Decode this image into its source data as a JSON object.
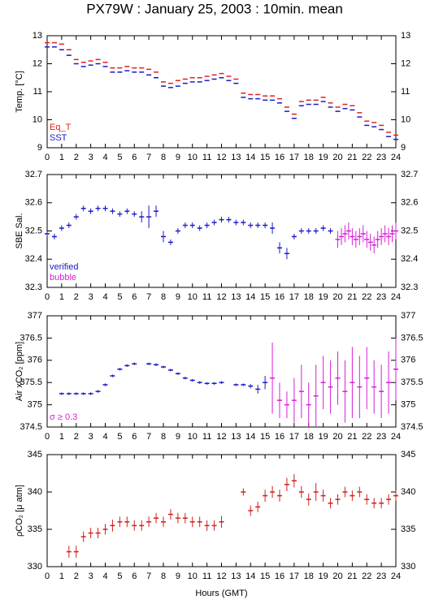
{
  "title": "PX79W : January 25, 2003 : 10min. mean",
  "chart_data": [
    {
      "type": "errorbar",
      "ylabel": "Temp. [°C]",
      "xlim": [
        0,
        24
      ],
      "xticks": [
        0,
        1,
        2,
        3,
        4,
        5,
        6,
        7,
        8,
        9,
        10,
        11,
        12,
        13,
        14,
        15,
        16,
        17,
        18,
        19,
        20,
        21,
        22,
        23,
        24
      ],
      "ylim": [
        9,
        13
      ],
      "yticks": [
        9,
        10,
        11,
        12,
        13
      ],
      "series": [
        {
          "name": "Eq_T",
          "color": "#e0201c",
          "x": [
            0,
            0.5,
            1,
            1.5,
            2,
            2.5,
            3,
            3.5,
            4,
            4.5,
            5,
            5.5,
            6,
            6.5,
            7,
            7.5,
            8,
            8.5,
            9,
            9.5,
            10,
            10.5,
            11,
            11.5,
            12,
            12.5,
            13,
            13.5,
            14,
            14.5,
            15,
            15.5,
            16,
            16.5,
            17,
            17.5,
            18,
            18.5,
            19,
            19.5,
            20,
            20.5,
            21,
            21.5,
            22,
            22.5,
            23,
            23.5,
            24
          ],
          "values": [
            12.75,
            12.75,
            12.7,
            12.5,
            12.15,
            12.05,
            12.1,
            12.15,
            12.05,
            11.85,
            11.85,
            11.9,
            11.85,
            11.85,
            11.8,
            11.7,
            11.35,
            11.3,
            11.4,
            11.45,
            11.5,
            11.5,
            11.55,
            11.6,
            11.65,
            11.55,
            11.45,
            10.95,
            10.9,
            10.9,
            10.85,
            10.85,
            10.75,
            10.45,
            10.2,
            10.65,
            10.7,
            10.7,
            10.8,
            10.6,
            10.45,
            10.55,
            10.5,
            10.25,
            9.95,
            9.9,
            9.8,
            9.55,
            9.45
          ]
        },
        {
          "name": "SST",
          "color": "#1a1ac8",
          "x": [
            0,
            0.5,
            1,
            1.5,
            2,
            2.5,
            3,
            3.5,
            4,
            4.5,
            5,
            5.5,
            6,
            6.5,
            7,
            7.5,
            8,
            8.5,
            9,
            9.5,
            10,
            10.5,
            11,
            11.5,
            12,
            12.5,
            13,
            13.5,
            14,
            14.5,
            15,
            15.5,
            16,
            16.5,
            17,
            17.5,
            18,
            18.5,
            19,
            19.5,
            20,
            20.5,
            21,
            21.5,
            22,
            22.5,
            23,
            23.5,
            24
          ],
          "values": [
            12.6,
            12.6,
            12.5,
            12.3,
            12.0,
            11.9,
            11.95,
            12.0,
            11.9,
            11.7,
            11.7,
            11.75,
            11.7,
            11.7,
            11.6,
            11.5,
            11.2,
            11.15,
            11.2,
            11.3,
            11.35,
            11.35,
            11.4,
            11.45,
            11.5,
            11.4,
            11.3,
            10.8,
            10.75,
            10.75,
            10.7,
            10.7,
            10.6,
            10.3,
            10.05,
            10.5,
            10.55,
            10.55,
            10.65,
            10.45,
            10.3,
            10.4,
            10.35,
            10.1,
            9.8,
            9.75,
            9.65,
            9.4,
            9.3
          ]
        }
      ]
    },
    {
      "type": "errorbar",
      "ylabel": "SBE Sal.",
      "xlim": [
        0,
        24
      ],
      "xticks": [
        0,
        1,
        2,
        3,
        4,
        5,
        6,
        7,
        8,
        9,
        10,
        11,
        12,
        13,
        14,
        15,
        16,
        17,
        18,
        19,
        20,
        21,
        22,
        23,
        24
      ],
      "ylim": [
        32.3,
        32.7
      ],
      "yticks": [
        32.3,
        32.4,
        32.5,
        32.6,
        32.7
      ],
      "series": [
        {
          "name": "verified",
          "color": "#1a1ac8",
          "x": [
            0,
            0.5,
            1,
            1.5,
            2,
            2.5,
            3,
            3.5,
            4,
            4.5,
            5,
            5.5,
            6,
            6.5,
            7,
            7.5,
            8,
            8.5,
            9,
            9.5,
            10,
            10.5,
            11,
            11.5,
            12,
            12.5,
            13,
            13.5,
            14,
            14.5,
            15,
            15.5,
            16,
            16.5,
            17,
            17.5,
            18,
            18.5,
            19,
            19.5
          ],
          "values": [
            32.49,
            32.48,
            32.51,
            32.52,
            32.55,
            32.58,
            32.57,
            32.58,
            32.58,
            32.57,
            32.56,
            32.57,
            32.56,
            32.55,
            32.55,
            32.57,
            32.48,
            32.46,
            32.5,
            32.52,
            32.52,
            32.51,
            32.52,
            32.53,
            32.54,
            32.54,
            32.53,
            32.53,
            32.52,
            32.52,
            32.52,
            32.51,
            32.44,
            32.42,
            32.48,
            32.5,
            32.5,
            32.5,
            32.51,
            32.5
          ],
          "errors": [
            0.01,
            0.01,
            0.01,
            0.01,
            0.01,
            0.01,
            0.01,
            0.01,
            0.01,
            0.01,
            0.01,
            0.01,
            0.01,
            0.02,
            0.04,
            0.02,
            0.02,
            0.01,
            0.01,
            0.01,
            0.01,
            0.01,
            0.01,
            0.01,
            0.01,
            0.01,
            0.01,
            0.01,
            0.01,
            0.01,
            0.01,
            0.02,
            0.02,
            0.02,
            0.01,
            0.01,
            0.01,
            0.01,
            0.01,
            0.01
          ]
        },
        {
          "name": "bubble",
          "color": "#d81ed8",
          "x": [
            20,
            20.25,
            20.5,
            20.75,
            21,
            21.25,
            21.5,
            21.75,
            22,
            22.25,
            22.5,
            22.75,
            23,
            23.25,
            23.5,
            23.75,
            24
          ],
          "values": [
            32.47,
            32.48,
            32.49,
            32.5,
            32.48,
            32.47,
            32.48,
            32.49,
            32.47,
            32.46,
            32.45,
            32.47,
            32.48,
            32.49,
            32.48,
            32.49,
            32.5
          ],
          "errors": [
            0.03,
            0.03,
            0.03,
            0.03,
            0.03,
            0.03,
            0.03,
            0.03,
            0.03,
            0.03,
            0.03,
            0.03,
            0.03,
            0.03,
            0.03,
            0.03,
            0.03
          ]
        }
      ]
    },
    {
      "type": "errorbar",
      "ylabel": "Air xCO₂ [ppm]",
      "xlim": [
        0,
        24
      ],
      "xticks": [
        0,
        1,
        2,
        3,
        4,
        5,
        6,
        7,
        8,
        9,
        10,
        11,
        12,
        13,
        14,
        15,
        16,
        17,
        18,
        19,
        20,
        21,
        22,
        23,
        24
      ],
      "ylim": [
        374.5,
        377
      ],
      "yticks": [
        374.5,
        375,
        375.5,
        376,
        376.5,
        377
      ],
      "series": [
        {
          "color": "#1a1ac8",
          "x": [
            1,
            1.5,
            2,
            2.5,
            3,
            3.5,
            4,
            4.5,
            5,
            5.5,
            6,
            7,
            7.5,
            8,
            8.5,
            9,
            9.5,
            10,
            10.5,
            11,
            11.5,
            12,
            13,
            13.5,
            14,
            14.5,
            15
          ],
          "values": [
            375.25,
            375.25,
            375.25,
            375.25,
            375.25,
            375.3,
            375.45,
            375.65,
            375.8,
            375.88,
            375.92,
            375.92,
            375.9,
            375.85,
            375.78,
            375.7,
            375.6,
            375.55,
            375.5,
            375.48,
            375.48,
            375.5,
            375.45,
            375.45,
            375.42,
            375.35,
            375.5
          ],
          "errors": [
            0.03,
            0.03,
            0.03,
            0.03,
            0.03,
            0.03,
            0.03,
            0.03,
            0.03,
            0.03,
            0.03,
            0.03,
            0.03,
            0.03,
            0.03,
            0.03,
            0.03,
            0.03,
            0.03,
            0.03,
            0.03,
            0.03,
            0.03,
            0.03,
            0.05,
            0.1,
            0.15
          ]
        },
        {
          "name": "σ ≥ 0.3",
          "color": "#d81ed8",
          "x": [
            15.5,
            16,
            16.5,
            17,
            17.5,
            18,
            18.5,
            19,
            19.5,
            20,
            20.5,
            21,
            21.5,
            22,
            22.5,
            23,
            23.5,
            24
          ],
          "values": [
            375.6,
            375.1,
            375.0,
            375.1,
            375.3,
            375.0,
            375.2,
            375.5,
            375.4,
            375.6,
            375.3,
            375.5,
            375.4,
            375.6,
            375.4,
            375.3,
            375.5,
            375.8
          ],
          "errors": [
            0.8,
            0.4,
            0.3,
            0.5,
            0.6,
            0.5,
            0.7,
            0.6,
            0.6,
            0.6,
            0.7,
            0.8,
            0.7,
            0.7,
            0.6,
            0.6,
            0.7,
            0.7
          ]
        }
      ]
    },
    {
      "type": "errorbar",
      "ylabel": "ρCO₂ [μ atm]",
      "xlabel": "Hours (GMT)",
      "xlim": [
        0,
        24
      ],
      "xticks": [
        0,
        1,
        2,
        3,
        4,
        5,
        6,
        7,
        8,
        9,
        10,
        11,
        12,
        13,
        14,
        15,
        16,
        17,
        18,
        19,
        20,
        21,
        22,
        23,
        24
      ],
      "ylim": [
        330,
        345
      ],
      "yticks": [
        330,
        335,
        340,
        345
      ],
      "series": [
        {
          "color": "#d0201c",
          "x": [
            1.5,
            2,
            2.5,
            3,
            3.5,
            4,
            4.5,
            5,
            5.5,
            6,
            6.5,
            7,
            7.5,
            8,
            8.5,
            9,
            9.5,
            10,
            10.5,
            11,
            11.5,
            12,
            13.5,
            14,
            14.5,
            15,
            15.5,
            16,
            16.5,
            17,
            17.5,
            18,
            18.5,
            19,
            19.5,
            20,
            20.5,
            21,
            21.5,
            22,
            22.5,
            23,
            23.5,
            24
          ],
          "values": [
            332,
            332,
            334,
            334.5,
            334.5,
            335,
            335.5,
            336,
            336,
            335.5,
            335.5,
            336,
            336.5,
            336,
            337,
            336.5,
            336.5,
            336,
            336,
            335.5,
            335.5,
            336,
            340,
            337.5,
            338,
            339.5,
            340,
            339.5,
            341,
            341.5,
            340,
            339,
            340,
            339.5,
            338.5,
            339,
            340,
            339.5,
            340,
            339,
            338.5,
            338.5,
            339,
            339.5
          ],
          "errors": [
            0.8,
            0.8,
            0.7,
            0.7,
            0.7,
            0.7,
            0.8,
            0.7,
            0.7,
            0.7,
            0.7,
            0.7,
            0.7,
            0.7,
            0.7,
            0.7,
            0.7,
            0.7,
            0.7,
            0.7,
            0.7,
            0.8,
            0.5,
            0.7,
            0.7,
            0.8,
            0.8,
            0.8,
            0.9,
            0.9,
            0.8,
            0.8,
            1.2,
            0.8,
            0.7,
            0.7,
            0.7,
            0.7,
            0.7,
            0.7,
            0.7,
            0.7,
            0.7,
            0.7
          ]
        }
      ]
    }
  ]
}
